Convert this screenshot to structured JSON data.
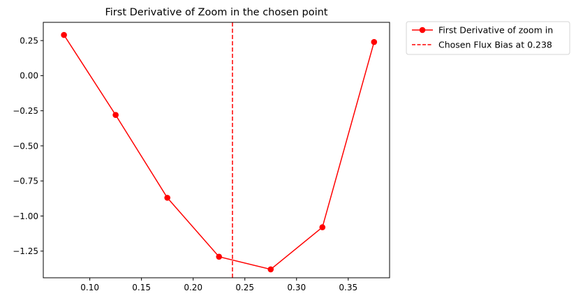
{
  "chart_data": {
    "type": "line",
    "title": "First Derivative of Zoom in the chosen point",
    "xlabel": "",
    "ylabel": "",
    "xlim": [
      0.055,
      0.39
    ],
    "ylim": [
      -1.44,
      0.38
    ],
    "x_ticks": [
      0.1,
      0.15,
      0.2,
      0.25,
      0.3,
      0.35
    ],
    "x_tick_labels": [
      "0.10",
      "0.15",
      "0.20",
      "0.25",
      "0.30",
      "0.35"
    ],
    "y_ticks": [
      0.25,
      0.0,
      -0.25,
      -0.5,
      -0.75,
      -1.0,
      -1.25
    ],
    "y_tick_labels": [
      "0.25",
      "0.00",
      "−0.25",
      "−0.50",
      "−0.75",
      "−1.00",
      "−1.25"
    ],
    "grid": false,
    "legend_position": "outside-top-right",
    "series": [
      {
        "name": "First Derivative of zoom in",
        "color": "#ff0000",
        "marker": "circle",
        "x": [
          0.075,
          0.125,
          0.175,
          0.225,
          0.275,
          0.325,
          0.375
        ],
        "y": [
          0.29,
          -0.28,
          -0.87,
          -1.29,
          -1.38,
          -1.08,
          0.24
        ]
      }
    ],
    "vlines": [
      {
        "name": "Chosen Flux Bias at 0.238",
        "x": 0.238,
        "color": "#ff0000",
        "style": "dashed"
      }
    ]
  }
}
